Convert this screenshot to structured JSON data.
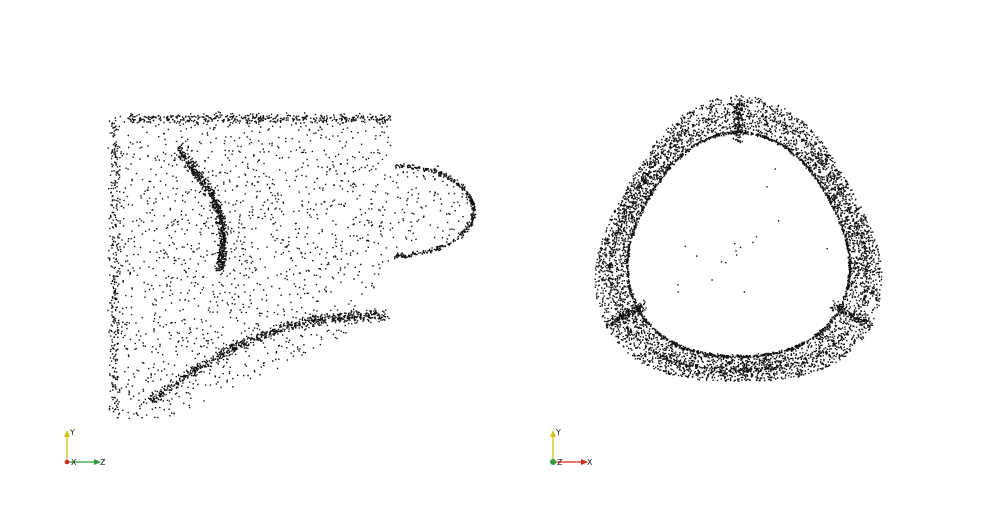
{
  "views": [
    {
      "name": "side-view",
      "shape": "side-profile",
      "axes": {
        "vertical": "Y",
        "horizontal": "Z",
        "origin": "X"
      }
    },
    {
      "name": "top-view",
      "shape": "trileaflet-ring",
      "axes": {
        "vertical": "Y",
        "horizontal": "X",
        "origin": "Z"
      }
    }
  ],
  "colors": {
    "background": "#ffffff",
    "points": "#111111",
    "axis_y": "#d4c21a",
    "axis_z": "#2f9e3a",
    "axis_x": "#d22a1f"
  },
  "icons": [
    "orientation-triad-icon",
    "orientation-triad-icon"
  ]
}
